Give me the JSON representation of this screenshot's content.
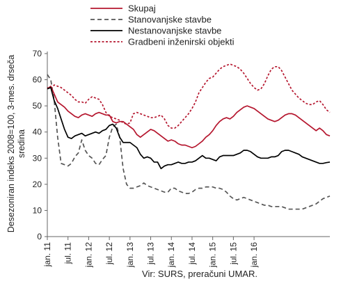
{
  "chart_data": {
    "type": "line",
    "title": "",
    "xlabel": "",
    "ylabel": "Desezoniran indeks 2008=100, 3-mes. drseča sredina",
    "ylabel_lines": [
      "Desezoniran indeks 2008=100, 3-mes. drseča",
      "sredina"
    ],
    "ylim": [
      0,
      70
    ],
    "yticks": [
      0,
      10,
      20,
      30,
      40,
      50,
      60,
      70
    ],
    "grid": false,
    "legend_position": "top",
    "x_tick_labels": [
      "jan. 11",
      "jul. 11",
      "jan. 12",
      "jul. 12",
      "jan. 13",
      "jul. 13",
      "jan. 14",
      "jul. 14",
      "jan. 15",
      "jul. 15",
      "jan. 16"
    ],
    "x_start": "2011-01",
    "x_end": "2016-01",
    "series": [
      {
        "name": "Skupaj",
        "color": "#b5162e",
        "dash": "solid",
        "values": [
          56.5,
          57.5,
          54.5,
          51.5,
          50.5,
          49.5,
          48,
          47,
          46,
          45.5,
          46.5,
          47,
          46.5,
          46,
          47,
          47.5,
          47,
          46.5,
          46.5,
          44,
          43.5,
          44,
          44,
          43,
          42,
          41,
          39,
          38,
          39,
          40,
          41,
          40.5,
          39.5,
          38.5,
          37.5,
          36.5,
          37,
          36.5,
          35.5,
          35,
          35,
          34.5,
          34,
          34.5,
          35.5,
          36.5,
          38,
          39,
          40.5,
          42.5,
          44,
          45,
          45.5,
          45,
          46,
          47.5,
          48.5,
          49.5,
          50,
          49.5,
          49,
          48,
          47,
          46,
          45,
          44.5,
          44,
          44.5,
          45.5,
          46.5,
          47,
          47,
          46.5,
          45.5,
          44.5,
          43.5,
          42.5,
          41.5,
          40.5,
          41.5,
          40.5,
          39,
          38.5
        ]
      },
      {
        "name": "Stanovanjske stavbe",
        "color": "#555555",
        "dash": "dashed",
        "values": [
          62,
          60,
          52,
          38,
          28,
          27.5,
          27,
          28,
          30.5,
          32,
          37,
          33,
          31,
          30,
          28,
          27.5,
          29.5,
          31,
          38,
          42,
          43,
          38,
          26,
          20,
          18.5,
          18.5,
          19,
          19.5,
          20.5,
          19.5,
          19,
          18.5,
          18,
          17.5,
          17,
          17,
          18.5,
          18.5,
          17.5,
          17,
          16.5,
          16.5,
          17,
          18,
          18.5,
          18.5,
          19,
          19,
          19,
          18.5,
          18.5,
          18,
          17,
          15.5,
          14.5,
          14,
          14.5,
          15,
          14.5,
          14,
          13.5,
          13,
          12.5,
          12,
          12,
          11.5,
          11.5,
          11.5,
          11.5,
          11,
          10.5,
          10.5,
          10.5,
          10.5,
          10.5,
          11,
          11.5,
          12,
          12.5,
          13.5,
          14.5,
          15,
          15.5
        ]
      },
      {
        "name": "Nestanovanjske stavbe",
        "color": "#000000",
        "dash": "solid",
        "values": [
          56.5,
          57,
          52,
          49,
          45,
          41,
          38,
          37.5,
          38.5,
          39,
          39.5,
          38.5,
          39,
          39.5,
          40,
          39.5,
          40.5,
          41,
          42.5,
          43,
          41.5,
          38,
          36,
          36,
          36,
          35,
          34,
          31.5,
          30,
          30.5,
          30,
          28.5,
          28.5,
          26,
          27,
          27.5,
          27.5,
          28,
          28.5,
          28,
          28,
          28.5,
          28.5,
          29,
          30,
          31,
          30,
          30,
          29.5,
          29,
          30.5,
          31,
          31,
          31,
          31,
          31.5,
          32,
          33,
          33,
          32.5,
          31.5,
          30.5,
          30,
          30,
          30,
          30.5,
          30.5,
          31,
          32.5,
          33,
          33,
          32.5,
          32,
          31.5,
          30.5,
          30,
          29.5,
          29,
          28.5,
          28,
          28,
          28.3,
          28.5
        ]
      },
      {
        "name": "Gradbeni inženirski objekti",
        "color": "#b5162e",
        "dash": "dotted",
        "values": [
          57,
          56.5,
          58,
          57.5,
          57,
          56,
          55,
          54,
          52.5,
          51.5,
          51.5,
          51,
          52.5,
          53.5,
          53,
          52.5,
          50.5,
          47.5,
          46,
          45.5,
          45,
          44.5,
          43.5,
          43,
          43.5,
          47,
          47.5,
          47,
          46.5,
          46,
          45.5,
          45.5,
          46,
          46.5,
          45,
          42.5,
          41.5,
          41.5,
          42.5,
          44,
          45.5,
          47,
          49,
          51.5,
          55,
          57,
          59,
          60.5,
          61,
          62.5,
          64,
          65,
          65.5,
          66,
          65.5,
          65,
          64,
          62.5,
          60.5,
          58.5,
          57,
          56,
          56.5,
          58.5,
          61.5,
          64,
          65,
          65,
          63.5,
          61,
          58.5,
          56,
          54.5,
          53,
          52,
          51,
          50.5,
          50.5,
          51.5,
          52,
          50.5,
          48.5,
          47.5
        ]
      }
    ]
  },
  "source_note": "Vir: SURS, preračuni UMAR."
}
